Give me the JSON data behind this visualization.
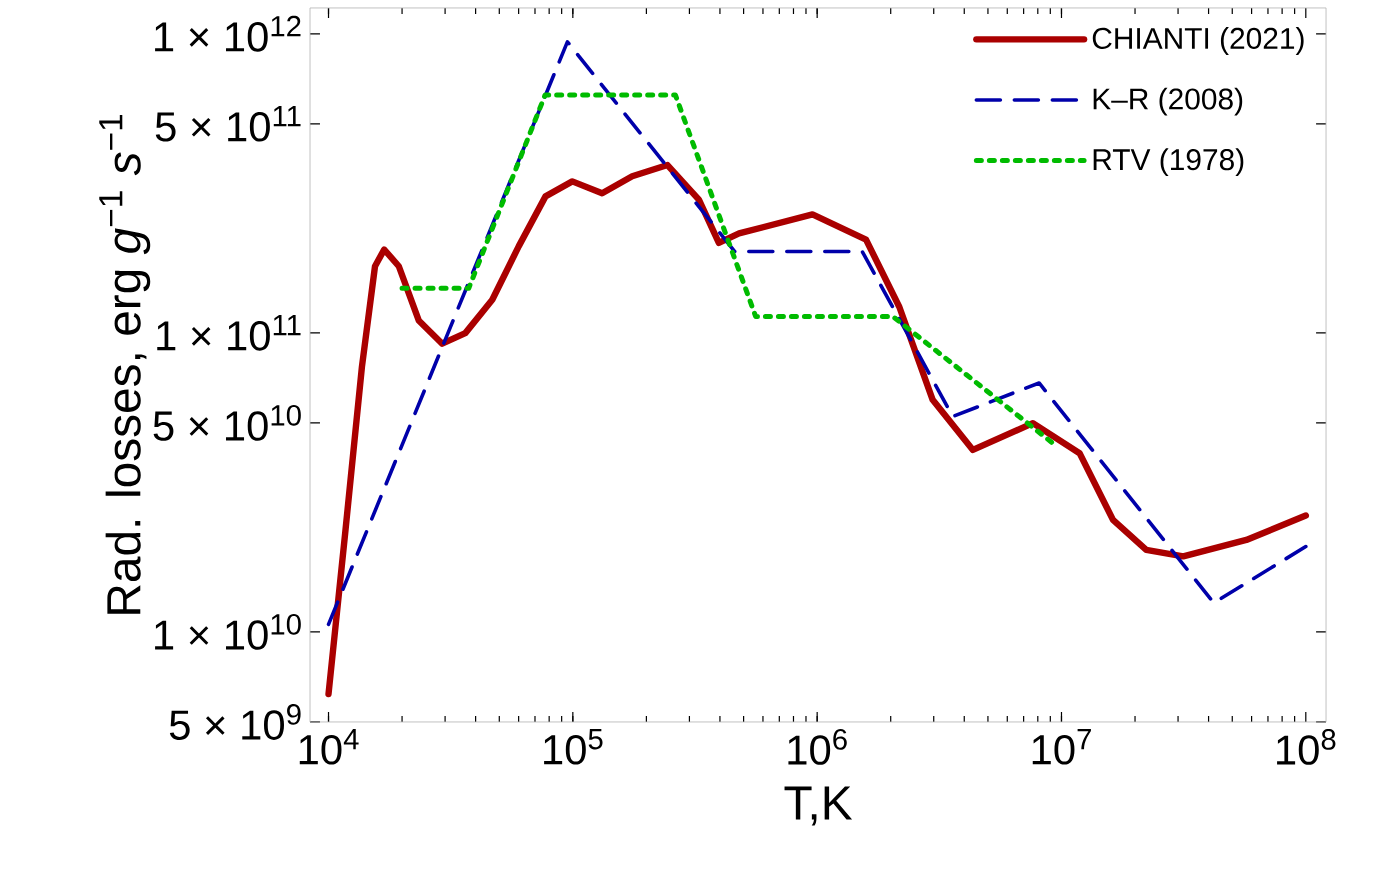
{
  "chart_data": {
    "type": "line",
    "xlabel": "T,K",
    "ylabel": "Rad. losses, erg *g*$^{−1}$ *s*$^{−1}$",
    "log": "xy",
    "legend": "top right",
    "grid": false,
    "xlim": [
      8400,
      121000000
    ],
    "ylim": [
      5000000000,
      1220000000000
    ],
    "xticks": [
      {
        "value": 10000,
        "label": "10$^{4}$"
      },
      {
        "value": 100000,
        "label": "10$^{5}$"
      },
      {
        "value": 1000000,
        "label": "10$^{6}$"
      },
      {
        "value": 10000000,
        "label": "10$^{7}$"
      },
      {
        "value": 100000000,
        "label": "10$^{8}$"
      }
    ],
    "yticks": [
      {
        "value": 5000000000,
        "label": "5 × 10$^{9}$"
      },
      {
        "value": 10000000000,
        "label": "1 × 10$^{10}$"
      },
      {
        "value": 50000000000,
        "label": "5 × 10$^{10}$"
      },
      {
        "value": 100000000000,
        "label": "1 × 10$^{11}$"
      },
      {
        "value": 500000000000,
        "label": "5 × 10$^{11}$"
      },
      {
        "value": 1000000000000,
        "label": "1 × 10$^{12}$"
      }
    ],
    "series": [
      {
        "name": "CHIANTI (2021)",
        "color": "#aa0000",
        "line_style": "solid",
        "x": [
          10000,
          11700,
          13700,
          15500,
          16900,
          19400,
          23400,
          29200,
          36300,
          46800,
          60100,
          77300,
          99500,
          131800,
          175000,
          244000,
          328000,
          396000,
          479000,
          957000,
          1585000,
          2170000,
          2970000,
          4340000,
          7640000,
          11860000,
          16250000,
          22230000,
          31500000,
          57100000,
          100000000
        ],
        "values": [
          6200000000,
          21400000000,
          77000000000,
          167000000000,
          190000000000,
          167000000000,
          110000000000,
          92000000000,
          99800000000,
          129000000000,
          195000000000,
          286000000000,
          321000000000,
          293000000000,
          334000000000,
          364000000000,
          279000000000,
          200000000000,
          215000000000,
          249000000000,
          205000000000,
          122000000000,
          59700000000,
          40600000000,
          49900000000,
          39600000000,
          23700000000,
          18800000000,
          17900000000,
          20300000000,
          24500000000
        ]
      },
      {
        "name": "K–R (2008)",
        "color": "#0000aa",
        "line_style": "dashed",
        "x": [
          10000,
          95000,
          460000,
          1530000,
          3590000,
          8100000,
          42000000,
          100000000
        ],
        "values": [
          10600000000,
          940000000000,
          187000000000,
          187000000000,
          52500000000,
          68000000000,
          12500000000,
          19300000000
        ]
      },
      {
        "name": "RTV (1978)",
        "color": "#00bb00",
        "line_style": "dotted",
        "x": [
          20000,
          37500,
          77000,
          263000,
          560000,
          2040000,
          9200000
        ],
        "values": [
          141000000000,
          141000000000,
          624000000000,
          624000000000,
          113500000000,
          113500000000,
          42800000000
        ]
      }
    ]
  }
}
